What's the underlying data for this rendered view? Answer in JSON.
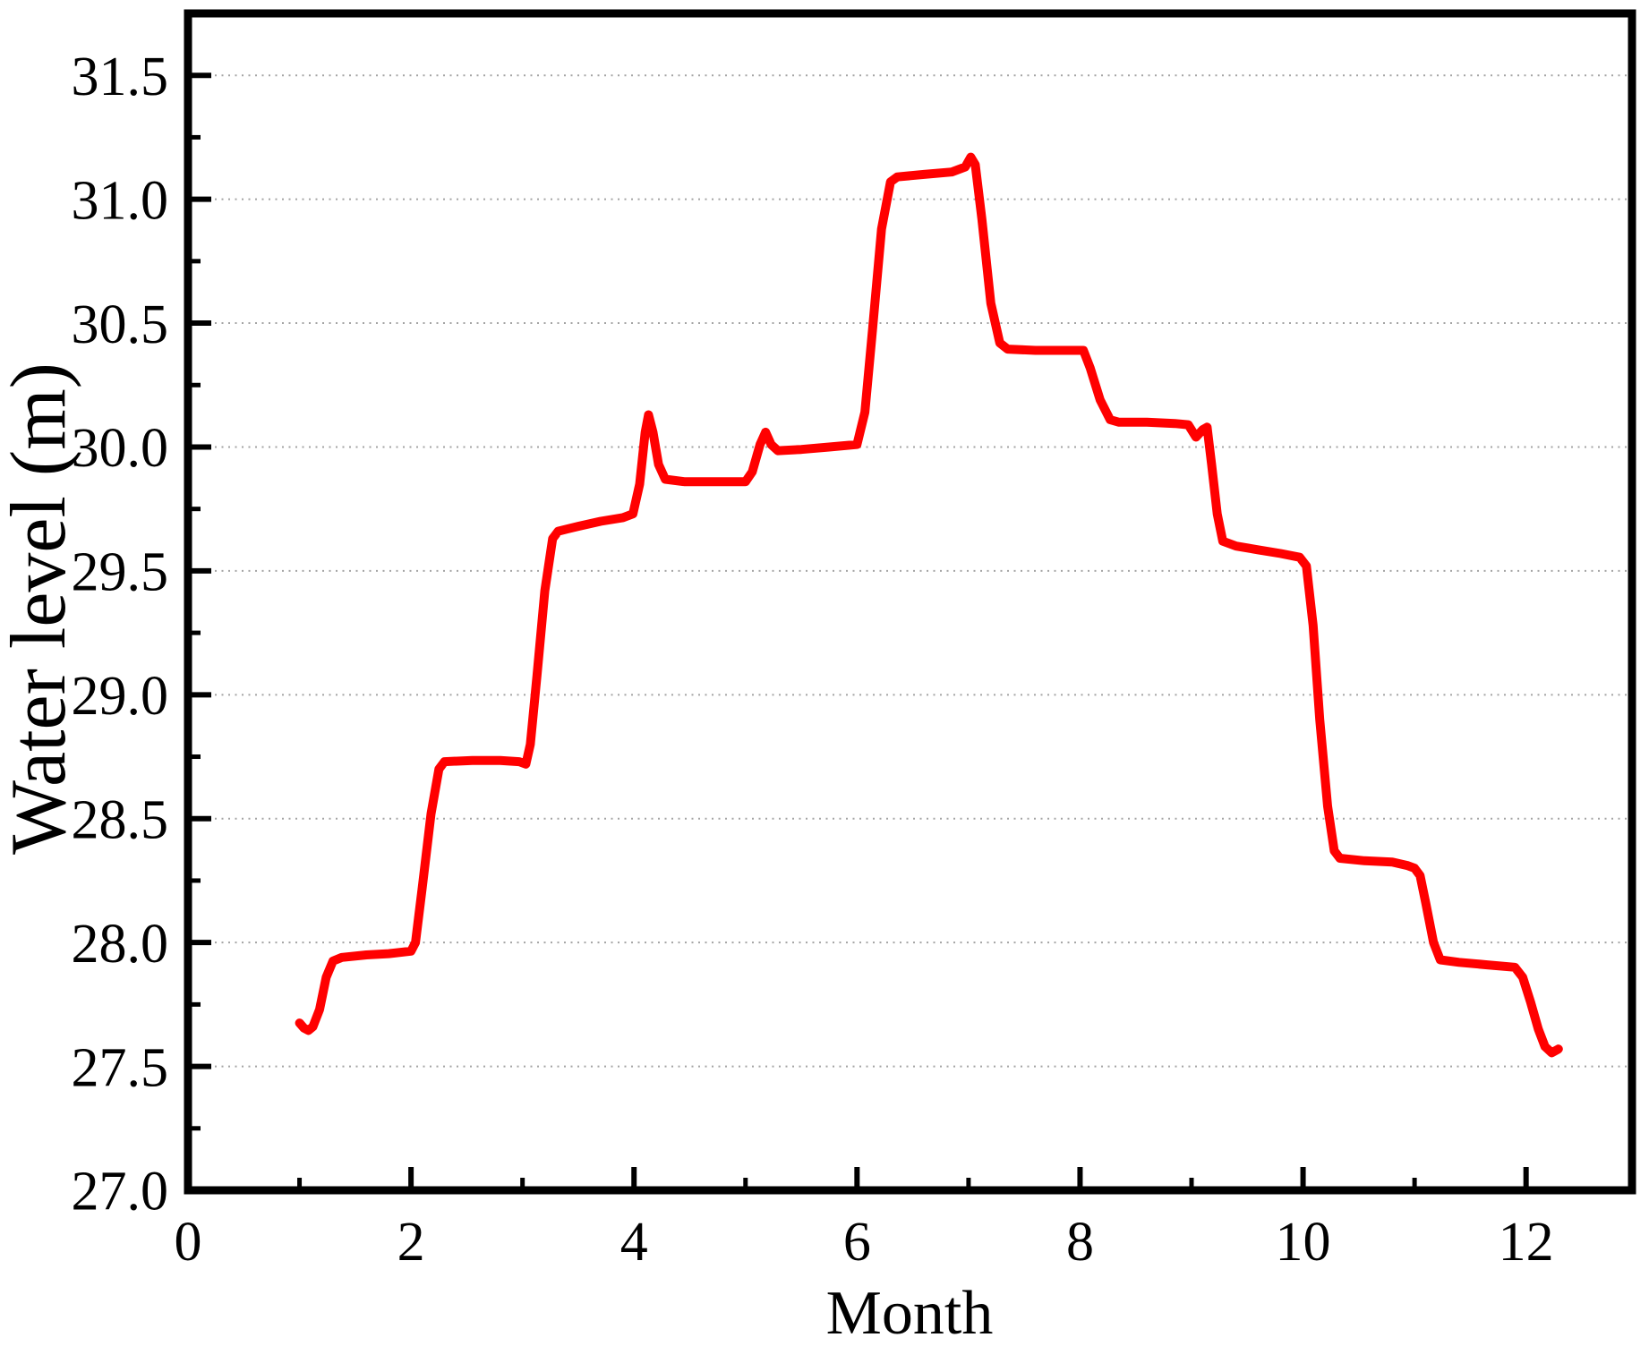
{
  "figure": {
    "background": "#ffffff",
    "description": "Line chart of reservoir water level by month"
  },
  "colors": {
    "line": "#ff0000",
    "axis": "#000000",
    "grid": "#a3a3a3",
    "text": "#000000",
    "background": "#ffffff"
  },
  "chart_data": {
    "type": "line",
    "title": "",
    "xlabel": "Month",
    "ylabel": "Water level (m)",
    "xlim": [
      0,
      12.95
    ],
    "ylim": [
      27.0,
      31.75
    ],
    "grid": "horizontal-dotted-at-major-y",
    "legend_position": "none",
    "grid_y_values": [
      27.5,
      28.0,
      28.5,
      29.0,
      29.5,
      30.0,
      30.5,
      31.0,
      31.5
    ],
    "x_major_ticks": [
      0,
      2,
      4,
      6,
      8,
      10,
      12
    ],
    "x_tick_labels": [
      "0",
      "2",
      "4",
      "6",
      "8",
      "10",
      "12"
    ],
    "x_minor_ticks": [
      1,
      3,
      5,
      7,
      9,
      11
    ],
    "y_major_ticks": [
      27.0,
      27.5,
      28.0,
      28.5,
      29.0,
      29.5,
      30.0,
      30.5,
      31.0,
      31.5
    ],
    "y_tick_labels": [
      "27.0",
      "27.5",
      "28.0",
      "28.5",
      "29.0",
      "29.5",
      "30.0",
      "30.5",
      "31.0",
      "31.5"
    ],
    "y_minor_ticks": [
      27.25,
      27.75,
      28.25,
      28.75,
      29.25,
      29.75,
      30.25,
      30.75,
      31.25
    ],
    "series": [
      {
        "name": "water-level",
        "color": "#ff0000",
        "line_width": 10,
        "points": [
          [
            1.0,
            27.675
          ],
          [
            1.04,
            27.655
          ],
          [
            1.08,
            27.645
          ],
          [
            1.12,
            27.66
          ],
          [
            1.18,
            27.73
          ],
          [
            1.24,
            27.86
          ],
          [
            1.3,
            27.925
          ],
          [
            1.38,
            27.94
          ],
          [
            1.6,
            27.95
          ],
          [
            1.8,
            27.955
          ],
          [
            2.0,
            27.965
          ],
          [
            2.04,
            28.0
          ],
          [
            2.1,
            28.22
          ],
          [
            2.18,
            28.52
          ],
          [
            2.25,
            28.7
          ],
          [
            2.3,
            28.73
          ],
          [
            2.55,
            28.735
          ],
          [
            2.8,
            28.735
          ],
          [
            2.97,
            28.73
          ],
          [
            3.03,
            28.72
          ],
          [
            3.07,
            28.8
          ],
          [
            3.13,
            29.08
          ],
          [
            3.2,
            29.42
          ],
          [
            3.27,
            29.63
          ],
          [
            3.32,
            29.66
          ],
          [
            3.5,
            29.68
          ],
          [
            3.7,
            29.7
          ],
          [
            3.9,
            29.715
          ],
          [
            3.99,
            29.73
          ],
          [
            4.05,
            29.85
          ],
          [
            4.1,
            30.06
          ],
          [
            4.13,
            30.13
          ],
          [
            4.17,
            30.06
          ],
          [
            4.22,
            29.93
          ],
          [
            4.28,
            29.87
          ],
          [
            4.45,
            29.86
          ],
          [
            4.7,
            29.86
          ],
          [
            5.0,
            29.86
          ],
          [
            5.06,
            29.9
          ],
          [
            5.13,
            30.01
          ],
          [
            5.18,
            30.06
          ],
          [
            5.23,
            30.01
          ],
          [
            5.29,
            29.985
          ],
          [
            5.5,
            29.99
          ],
          [
            5.75,
            30.0
          ],
          [
            6.0,
            30.01
          ],
          [
            6.07,
            30.14
          ],
          [
            6.14,
            30.48
          ],
          [
            6.22,
            30.88
          ],
          [
            6.3,
            31.07
          ],
          [
            6.36,
            31.09
          ],
          [
            6.6,
            31.1
          ],
          [
            6.85,
            31.11
          ],
          [
            6.97,
            31.13
          ],
          [
            7.02,
            31.17
          ],
          [
            7.06,
            31.14
          ],
          [
            7.12,
            30.92
          ],
          [
            7.2,
            30.58
          ],
          [
            7.28,
            30.42
          ],
          [
            7.35,
            30.395
          ],
          [
            7.6,
            30.39
          ],
          [
            7.85,
            30.39
          ],
          [
            8.03,
            30.39
          ],
          [
            8.09,
            30.32
          ],
          [
            8.18,
            30.19
          ],
          [
            8.27,
            30.11
          ],
          [
            8.35,
            30.1
          ],
          [
            8.6,
            30.1
          ],
          [
            8.85,
            30.095
          ],
          [
            8.97,
            30.09
          ],
          [
            9.04,
            30.04
          ],
          [
            9.1,
            30.07
          ],
          [
            9.14,
            30.08
          ],
          [
            9.18,
            29.93
          ],
          [
            9.23,
            29.73
          ],
          [
            9.28,
            29.62
          ],
          [
            9.4,
            29.6
          ],
          [
            9.6,
            29.585
          ],
          [
            9.8,
            29.57
          ],
          [
            9.97,
            29.555
          ],
          [
            10.03,
            29.52
          ],
          [
            10.09,
            29.28
          ],
          [
            10.15,
            28.9
          ],
          [
            10.22,
            28.55
          ],
          [
            10.28,
            28.37
          ],
          [
            10.33,
            28.34
          ],
          [
            10.55,
            28.33
          ],
          [
            10.8,
            28.325
          ],
          [
            10.94,
            28.31
          ],
          [
            11.0,
            28.3
          ],
          [
            11.05,
            28.27
          ],
          [
            11.1,
            28.16
          ],
          [
            11.17,
            28.0
          ],
          [
            11.23,
            27.93
          ],
          [
            11.4,
            27.92
          ],
          [
            11.65,
            27.91
          ],
          [
            11.9,
            27.9
          ],
          [
            11.97,
            27.86
          ],
          [
            12.04,
            27.76
          ],
          [
            12.11,
            27.65
          ],
          [
            12.17,
            27.58
          ],
          [
            12.23,
            27.555
          ],
          [
            12.29,
            27.57
          ]
        ]
      }
    ]
  }
}
